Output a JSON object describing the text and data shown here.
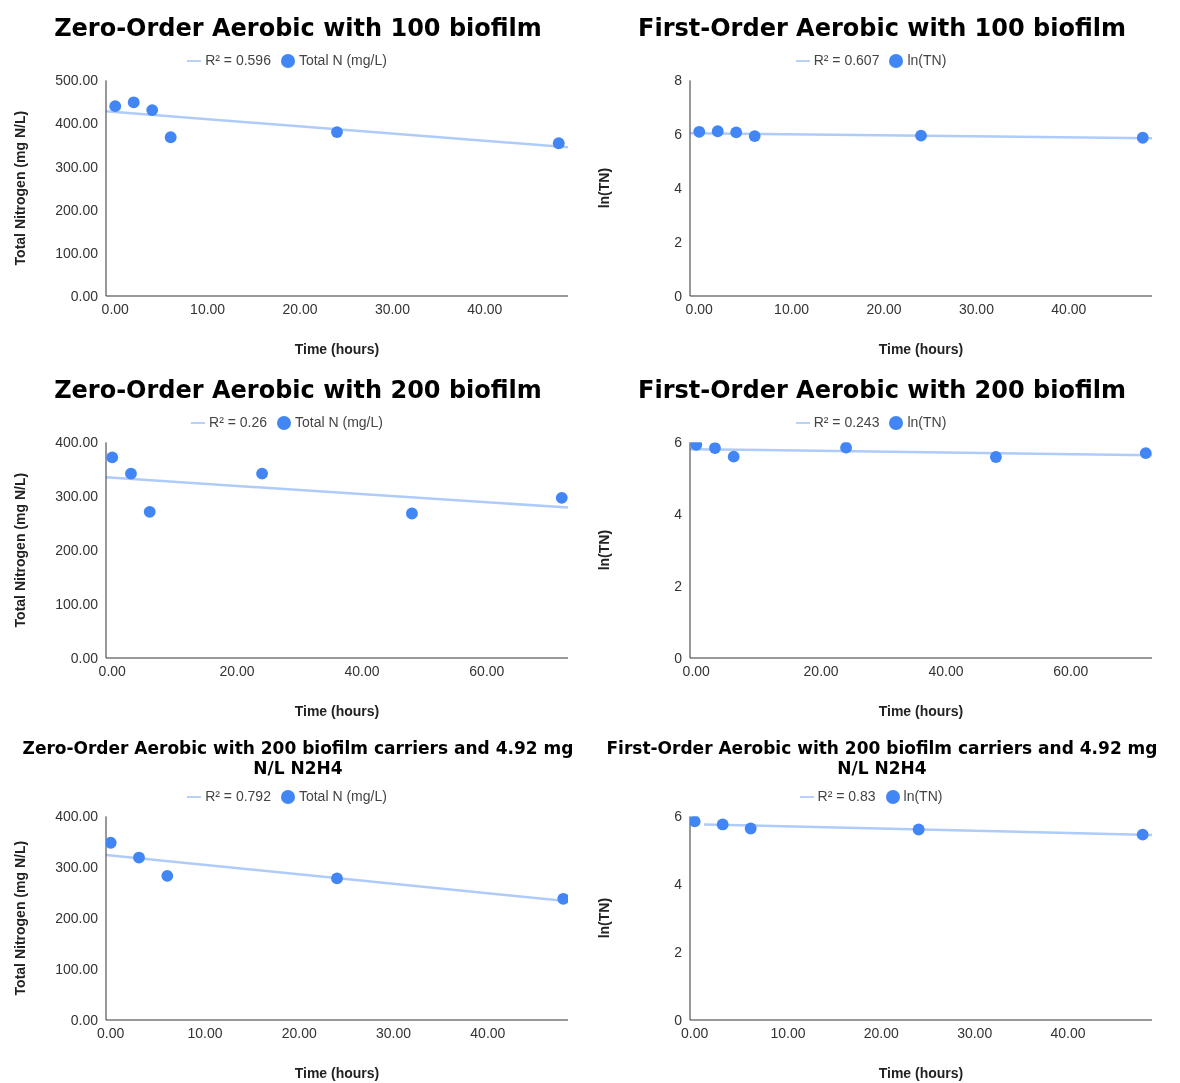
{
  "chart_data": [
    {
      "type": "scatter",
      "title": "Zero-Order Aerobic with 100 biofilm",
      "xlabel": "Time (hours)",
      "ylabel": "Total Nitrogen (mg N/L)",
      "legend": "top",
      "marker": "circle",
      "xlim": [
        -1,
        49
      ],
      "xticks": [
        {
          "value": 0,
          "label": "0.00"
        },
        {
          "value": 10,
          "label": "10.00"
        },
        {
          "value": 20,
          "label": "20.00"
        },
        {
          "value": 30,
          "label": "30.00"
        },
        {
          "value": 40,
          "label": "40.00"
        }
      ],
      "ylim": [
        0,
        500
      ],
      "yticks": [
        {
          "value": 0,
          "label": "0.00"
        },
        {
          "value": 100,
          "label": "100.00"
        },
        {
          "value": 200,
          "label": "200.00"
        },
        {
          "value": 300,
          "label": "300.00"
        },
        {
          "value": 400,
          "label": "400.00"
        },
        {
          "value": 500,
          "label": "500.00"
        }
      ],
      "series": [
        {
          "name": "Total N (mg/L)",
          "color": "#4285f4",
          "x": [
            0,
            2,
            4,
            6,
            24,
            48
          ],
          "values": [
            440,
            449,
            431,
            368,
            380,
            354
          ]
        },
        {
          "type": "line",
          "name": "R² = 0.596",
          "color": "#aecbfa",
          "marker": "none",
          "x": [
            -1,
            49
          ],
          "values": [
            428,
            345
          ]
        }
      ]
    },
    {
      "type": "scatter",
      "title": "First-Order Aerobic with 100 biofilm",
      "xlabel": "Time (hours)",
      "ylabel": "ln(TN)",
      "legend": "top",
      "marker": "circle",
      "xlim": [
        -1,
        49
      ],
      "xticks": [
        {
          "value": 0,
          "label": "0.00"
        },
        {
          "value": 10,
          "label": "10.00"
        },
        {
          "value": 20,
          "label": "20.00"
        },
        {
          "value": 30,
          "label": "30.00"
        },
        {
          "value": 40,
          "label": "40.00"
        }
      ],
      "ylim": [
        0,
        8
      ],
      "yticks": [
        0,
        2,
        4,
        6,
        8
      ],
      "series": [
        {
          "name": "ln(TN)",
          "color": "#4285f4",
          "x": [
            0,
            2,
            4,
            6,
            24,
            48
          ],
          "values": [
            6.09,
            6.11,
            6.07,
            5.93,
            5.95,
            5.87
          ]
        },
        {
          "type": "line",
          "name": "R² = 0.607",
          "color": "#aecbfa",
          "marker": "none",
          "x": [
            -1,
            49
          ],
          "values": [
            6.04,
            5.85
          ]
        }
      ]
    },
    {
      "type": "scatter",
      "title": "Zero-Order Aerobic with 200 biofilm",
      "xlabel": "Time (hours)",
      "ylabel": "Total Nitrogen (mg N/L)",
      "legend": "top",
      "marker": "circle",
      "xlim": [
        -1,
        73
      ],
      "xticks": [
        {
          "value": 0,
          "label": "0.00"
        },
        {
          "value": 20,
          "label": "20.00"
        },
        {
          "value": 40,
          "label": "40.00"
        },
        {
          "value": 60,
          "label": "60.00"
        }
      ],
      "ylim": [
        0,
        400
      ],
      "yticks": [
        {
          "value": 0,
          "label": "0.00"
        },
        {
          "value": 100,
          "label": "100.00"
        },
        {
          "value": 200,
          "label": "200.00"
        },
        {
          "value": 300,
          "label": "300.00"
        },
        {
          "value": 400,
          "label": "400.00"
        }
      ],
      "series": [
        {
          "name": "Total N (mg/L)",
          "color": "#4285f4",
          "x": [
            0,
            3,
            6,
            24,
            48,
            72
          ],
          "values": [
            372,
            342,
            271,
            342,
            268,
            297
          ]
        },
        {
          "type": "line",
          "name": "R² = 0.26",
          "color": "#aecbfa",
          "marker": "none",
          "x": [
            -1,
            73
          ],
          "values": [
            335,
            279
          ]
        }
      ]
    },
    {
      "type": "scatter",
      "title": "First-Order Aerobic with 200 biofilm",
      "xlabel": "Time (hours)",
      "ylabel": "ln(TN)",
      "legend": "top",
      "marker": "circle",
      "xlim": [
        -1,
        73
      ],
      "xticks": [
        {
          "value": 0,
          "label": "0.00"
        },
        {
          "value": 20,
          "label": "20.00"
        },
        {
          "value": 40,
          "label": "40.00"
        },
        {
          "value": 60,
          "label": "60.00"
        }
      ],
      "ylim": [
        0,
        6
      ],
      "yticks": [
        0,
        2,
        4,
        6
      ],
      "series": [
        {
          "name": "ln(TN)",
          "color": "#4285f4",
          "x": [
            0,
            3,
            6,
            24,
            48,
            72
          ],
          "values": [
            5.93,
            5.84,
            5.6,
            5.85,
            5.59,
            5.7
          ]
        },
        {
          "type": "line",
          "name": "R² = 0.243",
          "color": "#aecbfa",
          "marker": "none",
          "x": [
            -1,
            73
          ],
          "values": [
            5.81,
            5.64
          ]
        }
      ]
    },
    {
      "type": "scatter",
      "title": "Zero-Order Aerobic with 200 biofilm carriers and 4.92 mg N/L N2H4",
      "xlabel": "Time (hours)",
      "ylabel": "Total Nitrogen (mg N/L)",
      "legend": "top",
      "marker": "circle",
      "xlim": [
        -0.5,
        48.5
      ],
      "xticks": [
        {
          "value": 0,
          "label": "0.00"
        },
        {
          "value": 10,
          "label": "10.00"
        },
        {
          "value": 20,
          "label": "20.00"
        },
        {
          "value": 30,
          "label": "30.00"
        },
        {
          "value": 40,
          "label": "40.00"
        }
      ],
      "ylim": [
        0,
        400
      ],
      "yticks": [
        {
          "value": 0,
          "label": "0.00"
        },
        {
          "value": 100,
          "label": "100.00"
        },
        {
          "value": 200,
          "label": "200.00"
        },
        {
          "value": 300,
          "label": "300.00"
        },
        {
          "value": 400,
          "label": "400.00"
        }
      ],
      "series": [
        {
          "name": "Total N (mg/L)",
          "color": "#4285f4",
          "x": [
            0,
            3,
            6,
            24,
            48
          ],
          "values": [
            348,
            319,
            283,
            278,
            238
          ]
        },
        {
          "type": "line",
          "name": "R² = 0.792",
          "color": "#aecbfa",
          "marker": "none",
          "x": [
            -0.5,
            48.5
          ],
          "values": [
            324,
            233
          ]
        }
      ]
    },
    {
      "type": "scatter",
      "title": "First-Order Aerobic with 200 biofilm carriers and 4.92 mg N/L N2H4",
      "xlabel": "Time (hours)",
      "ylabel": "ln(TN)",
      "legend": "top",
      "marker": "circle",
      "xlim": [
        -0.5,
        49
      ],
      "xticks": [
        {
          "value": 0,
          "label": "0.00"
        },
        {
          "value": 10,
          "label": "10.00"
        },
        {
          "value": 20,
          "label": "20.00"
        },
        {
          "value": 30,
          "label": "30.00"
        },
        {
          "value": 40,
          "label": "40.00"
        }
      ],
      "ylim": [
        0,
        6
      ],
      "yticks": [
        0,
        2,
        4,
        6
      ],
      "series": [
        {
          "name": "ln(TN)",
          "color": "#4285f4",
          "x": [
            0,
            3,
            6,
            24,
            48
          ],
          "values": [
            5.85,
            5.76,
            5.64,
            5.61,
            5.46
          ]
        },
        {
          "type": "line",
          "name": "R² = 0.83",
          "color": "#aecbfa",
          "marker": "none",
          "x": [
            1,
            49
          ],
          "values": [
            5.76,
            5.45
          ]
        }
      ]
    }
  ]
}
